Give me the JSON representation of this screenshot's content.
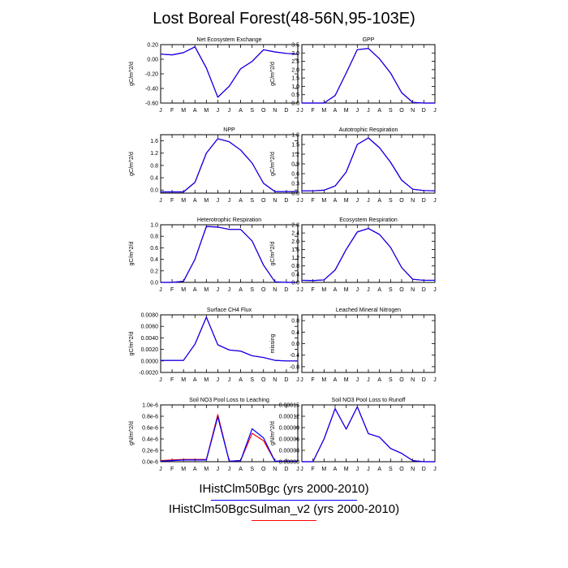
{
  "title": "Lost Boreal Forest(48-56N,95-103E)",
  "legend": [
    {
      "label": "IHistClm50Bgc (yrs 2000-2010)",
      "color": "#0000ff"
    },
    {
      "label": "IHistClm50BgcSulman_v2 (yrs 2000-2010)",
      "color": "#ff0000"
    }
  ],
  "chart_data": [
    {
      "type": "line",
      "title": "Net Ecosystem Exchange",
      "ylabel": "gC/m^2/d",
      "categories": [
        "J",
        "F",
        "M",
        "A",
        "M",
        "J",
        "J",
        "A",
        "S",
        "O",
        "N",
        "D",
        "J"
      ],
      "ylim": [
        -0.6,
        0.2
      ],
      "yticks": [
        0.2,
        0.0,
        -0.2,
        -0.4,
        -0.6
      ],
      "ytick_labels": [
        "0.20",
        "0.00",
        "-0.20",
        "-0.40",
        "-0.60"
      ],
      "series": [
        {
          "values": [
            0.07,
            0.06,
            0.09,
            0.17,
            -0.12,
            -0.52,
            -0.37,
            -0.13,
            -0.03,
            0.13,
            0.1,
            0.08,
            0.07
          ]
        },
        {
          "values": [
            0.07,
            0.06,
            0.09,
            0.17,
            -0.12,
            -0.52,
            -0.37,
            -0.13,
            -0.03,
            0.13,
            0.1,
            0.08,
            0.07
          ]
        }
      ]
    },
    {
      "type": "line",
      "title": "GPP",
      "ylabel": "gC/m^2/d",
      "categories": [
        "J",
        "F",
        "M",
        "A",
        "M",
        "J",
        "J",
        "A",
        "S",
        "O",
        "N",
        "D",
        "J"
      ],
      "ylim": [
        0,
        3.5
      ],
      "yticks": [
        3.5,
        3.0,
        2.5,
        2.0,
        1.5,
        1.0,
        0.5,
        0.0
      ],
      "ytick_labels": [
        "3.5",
        "3.0",
        "2.5",
        "2.0",
        "1.5",
        "1.0",
        "0.5",
        "0.0"
      ],
      "series": [
        {
          "values": [
            0.0,
            0.0,
            0.0,
            0.45,
            1.8,
            3.2,
            3.27,
            2.65,
            1.8,
            0.62,
            0.04,
            0.0,
            0.0
          ]
        },
        {
          "values": [
            0.0,
            0.0,
            0.0,
            0.45,
            1.8,
            3.2,
            3.27,
            2.65,
            1.8,
            0.62,
            0.04,
            0.0,
            0.0
          ]
        }
      ]
    },
    {
      "type": "line",
      "title": "NPP",
      "ylabel": "gC/m^2/d",
      "categories": [
        "J",
        "F",
        "M",
        "A",
        "M",
        "J",
        "J",
        "A",
        "S",
        "O",
        "N",
        "D",
        "J"
      ],
      "ylim": [
        -0.1,
        1.8
      ],
      "yticks": [
        1.6,
        1.2,
        0.8,
        0.4,
        0.0
      ],
      "ytick_labels": [
        "1.6",
        "1.2",
        "0.8",
        "0.4",
        "0.0"
      ],
      "series": [
        {
          "values": [
            -0.06,
            -0.06,
            -0.06,
            0.25,
            1.2,
            1.67,
            1.57,
            1.3,
            0.88,
            0.22,
            -0.05,
            -0.05,
            -0.05
          ]
        },
        {
          "values": [
            -0.06,
            -0.06,
            -0.06,
            0.25,
            1.2,
            1.67,
            1.57,
            1.3,
            0.88,
            0.22,
            -0.05,
            -0.05,
            -0.05
          ]
        }
      ]
    },
    {
      "type": "line",
      "title": "Autotrophic Respiration",
      "ylabel": "gC/m^2/d",
      "categories": [
        "J",
        "F",
        "M",
        "A",
        "M",
        "J",
        "J",
        "A",
        "S",
        "O",
        "N",
        "D",
        "J"
      ],
      "ylim": [
        0,
        1.8
      ],
      "yticks": [
        1.8,
        1.5,
        1.2,
        0.9,
        0.6,
        0.3,
        0.0
      ],
      "ytick_labels": [
        "1.8",
        "1.5",
        "1.2",
        "0.9",
        "0.6",
        "0.3",
        "0.0"
      ],
      "series": [
        {
          "values": [
            0.07,
            0.07,
            0.09,
            0.22,
            0.65,
            1.5,
            1.7,
            1.4,
            0.95,
            0.4,
            0.12,
            0.08,
            0.07
          ]
        },
        {
          "values": [
            0.07,
            0.07,
            0.09,
            0.22,
            0.65,
            1.5,
            1.7,
            1.4,
            0.95,
            0.4,
            0.12,
            0.08,
            0.07
          ]
        }
      ]
    },
    {
      "type": "line",
      "title": "Heterotrophic Respiration",
      "ylabel": "gC/m^2/d",
      "categories": [
        "J",
        "F",
        "M",
        "A",
        "M",
        "J",
        "J",
        "A",
        "S",
        "O",
        "N",
        "D",
        "J"
      ],
      "ylim": [
        0,
        1.0
      ],
      "yticks": [
        1.0,
        0.8,
        0.6,
        0.4,
        0.2,
        0.0
      ],
      "ytick_labels": [
        "1.0",
        "0.8",
        "0.6",
        "0.4",
        "0.2",
        "0.0"
      ],
      "series": [
        {
          "values": [
            0.0,
            0.0,
            0.02,
            0.4,
            0.97,
            0.96,
            0.92,
            0.92,
            0.72,
            0.3,
            0.01,
            0.0,
            0.0
          ]
        },
        {
          "values": [
            0.0,
            0.0,
            0.02,
            0.4,
            0.97,
            0.96,
            0.92,
            0.92,
            0.72,
            0.3,
            0.01,
            0.0,
            0.0
          ]
        }
      ]
    },
    {
      "type": "line",
      "title": "Ecosystem Respiration",
      "ylabel": "gC/m^2/d",
      "categories": [
        "J",
        "F",
        "M",
        "A",
        "M",
        "J",
        "J",
        "A",
        "S",
        "O",
        "N",
        "D",
        "J"
      ],
      "ylim": [
        0,
        2.8
      ],
      "yticks": [
        2.8,
        2.4,
        2.0,
        1.6,
        1.2,
        0.8,
        0.4,
        0.0
      ],
      "ytick_labels": [
        "2.8",
        "2.4",
        "2.0",
        "1.6",
        "1.2",
        "0.8",
        "0.4",
        "0.0"
      ],
      "series": [
        {
          "values": [
            0.1,
            0.09,
            0.12,
            0.6,
            1.6,
            2.45,
            2.62,
            2.33,
            1.7,
            0.72,
            0.15,
            0.1,
            0.1
          ]
        },
        {
          "values": [
            0.1,
            0.09,
            0.12,
            0.6,
            1.6,
            2.45,
            2.62,
            2.33,
            1.7,
            0.72,
            0.15,
            0.1,
            0.1
          ]
        }
      ]
    },
    {
      "type": "line",
      "title": "Surface CH4 Flux",
      "ylabel": "gC/m^2/d",
      "categories": [
        "J",
        "F",
        "M",
        "A",
        "M",
        "J",
        "J",
        "A",
        "S",
        "O",
        "N",
        "D",
        "J"
      ],
      "ylim": [
        -0.002,
        0.008
      ],
      "yticks": [
        0.008,
        0.006,
        0.004,
        0.002,
        0.0,
        -0.002
      ],
      "ytick_labels": [
        "0.0080",
        "0.0060",
        "0.0040",
        "0.0020",
        "0.0000",
        "-0.0020"
      ],
      "series": [
        {
          "values": [
            0.0001,
            0.0001,
            0.0001,
            0.0029,
            0.0076,
            0.0028,
            0.0019,
            0.0017,
            0.0009,
            0.0006,
            0.0001,
            0.0,
            0.0
          ]
        },
        {
          "values": [
            0.0001,
            0.0001,
            0.0001,
            0.0029,
            0.0076,
            0.0028,
            0.0019,
            0.0017,
            0.0009,
            0.0006,
            0.0001,
            0.0,
            0.0
          ]
        }
      ]
    },
    {
      "type": "line",
      "title": "Leached Mineral Nitrogen",
      "ylabel": "missing",
      "categories": [
        "J",
        "F",
        "M",
        "A",
        "M",
        "J",
        "J",
        "A",
        "S",
        "O",
        "N",
        "D",
        "J"
      ],
      "ylim": [
        -1.0,
        1.0
      ],
      "yticks": [
        0.8,
        0.4,
        0.0,
        -0.4,
        -0.8
      ],
      "ytick_labels": [
        "0.8",
        "0.4",
        "0.0",
        "-0.4",
        "-0.8"
      ],
      "series": []
    },
    {
      "type": "line",
      "title": "Soil NO3 Pool Loss to Leaching",
      "ylabel": "gN/m^2/d",
      "categories": [
        "J",
        "F",
        "M",
        "A",
        "M",
        "J",
        "J",
        "A",
        "S",
        "O",
        "N",
        "D",
        "J"
      ],
      "ylim": [
        0,
        1e-06
      ],
      "yticks": [
        1e-06,
        8e-07,
        6e-07,
        4e-07,
        2e-07,
        0.0
      ],
      "ytick_labels": [
        "1.0e-6",
        "0.8e-6",
        "0.6e-6",
        "0.4e-6",
        "0.2e-6",
        "0.0e-6"
      ],
      "series": [
        {
          "values": [
            1e-08,
            2e-08,
            3e-08,
            3e-08,
            3e-08,
            7.9e-07,
            1e-08,
            2e-08,
            5.8e-07,
            4.2e-07,
            1e-08,
            1e-08,
            1e-08
          ]
        },
        {
          "values": [
            2e-08,
            3e-08,
            4e-08,
            4e-08,
            4e-08,
            8.3e-07,
            1e-08,
            2e-08,
            5e-07,
            3.7e-07,
            1e-08,
            1e-08,
            1e-08
          ]
        }
      ]
    },
    {
      "type": "line",
      "title": "Soil NO3 Pool Loss to Runoff",
      "ylabel": "gN/m^2/d",
      "categories": [
        "J",
        "F",
        "M",
        "A",
        "M",
        "J",
        "J",
        "A",
        "S",
        "O",
        "N",
        "D",
        "J"
      ],
      "ylim": [
        0,
        0.00015
      ],
      "yticks": [
        0.00015,
        0.00012,
        9e-05,
        6e-05,
        3e-05,
        0.0
      ],
      "ytick_labels": [
        "0.00015",
        "0.00012",
        "0.00009",
        "0.00006",
        "0.00003",
        "0.00000"
      ],
      "series": [
        {
          "values": [
            0.0,
            0.0,
            6e-05,
            0.00014,
            8.6e-05,
            0.000145,
            7.4e-05,
            6.5e-05,
            3.5e-05,
            2.2e-05,
            3e-06,
            0.0,
            0.0
          ]
        },
        {
          "values": [
            0.0,
            0.0,
            6e-05,
            0.00014,
            8.6e-05,
            0.000145,
            7.4e-05,
            6.5e-05,
            3.5e-05,
            2.2e-05,
            3e-06,
            0.0,
            0.0
          ]
        }
      ]
    }
  ]
}
